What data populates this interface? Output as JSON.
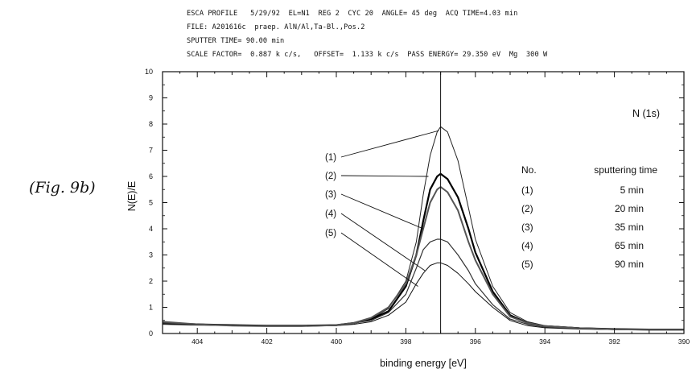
{
  "figure_label": "(Fig. 9b)",
  "header": {
    "line1": "ESCA PROFILE   5/29/92  EL=N1  REG 2  CYC 20  ANGLE= 45 deg  ACQ TIME=4.03 min",
    "line2": "FILE: A201616c  praep. AlN/Al,Ta-Bl.,Pos.2",
    "line3": "SPUTTER TIME= 90.00 min",
    "line4": "SCALE FACTOR=  0.887 k c/s,   OFFSET=  1.133 k c/s  PASS ENERGY= 29.350 eV  Mg  300 W"
  },
  "chart_data": {
    "type": "line",
    "title": "N (1s)",
    "xlabel": "binding energy [eV]",
    "ylabel": "N(E)/E",
    "xlim": [
      405,
      390
    ],
    "x_reversed": true,
    "ylim": [
      0,
      10
    ],
    "xticks": [
      404,
      402,
      400,
      398,
      396,
      394,
      392,
      390
    ],
    "yticks": [
      0,
      1,
      2,
      3,
      4,
      5,
      6,
      7,
      8,
      9,
      10
    ],
    "peak_line_x": 397.0,
    "legend": {
      "header_no": "No.",
      "header_time": "sputtering time",
      "placement": "right"
    },
    "series": [
      {
        "name": "(1)",
        "time": "5 min",
        "color": "#222222",
        "points": [
          [
            405,
            0.35
          ],
          [
            404,
            0.32
          ],
          [
            403,
            0.3
          ],
          [
            402,
            0.3
          ],
          [
            401,
            0.3
          ],
          [
            400,
            0.32
          ],
          [
            399.5,
            0.4
          ],
          [
            399,
            0.55
          ],
          [
            398.5,
            0.95
          ],
          [
            398,
            2.0
          ],
          [
            397.7,
            3.5
          ],
          [
            397.5,
            5.3
          ],
          [
            397.3,
            6.8
          ],
          [
            397.1,
            7.7
          ],
          [
            397.0,
            7.9
          ],
          [
            396.8,
            7.7
          ],
          [
            396.5,
            6.6
          ],
          [
            396.2,
            4.8
          ],
          [
            396,
            3.6
          ],
          [
            395.5,
            1.8
          ],
          [
            395,
            0.8
          ],
          [
            394.5,
            0.45
          ],
          [
            394,
            0.3
          ],
          [
            393,
            0.22
          ],
          [
            392,
            0.18
          ],
          [
            391,
            0.15
          ],
          [
            390,
            0.15
          ]
        ]
      },
      {
        "name": "(2)",
        "time": "20 min",
        "color": "#000000",
        "points": [
          [
            405,
            0.4
          ],
          [
            404,
            0.35
          ],
          [
            403,
            0.32
          ],
          [
            402,
            0.3
          ],
          [
            401,
            0.3
          ],
          [
            400,
            0.32
          ],
          [
            399.5,
            0.4
          ],
          [
            399,
            0.55
          ],
          [
            398.5,
            0.85
          ],
          [
            398,
            1.8
          ],
          [
            397.7,
            3.0
          ],
          [
            397.5,
            4.3
          ],
          [
            397.3,
            5.5
          ],
          [
            397.1,
            6.0
          ],
          [
            397.0,
            6.1
          ],
          [
            396.8,
            5.9
          ],
          [
            396.5,
            5.2
          ],
          [
            396.2,
            4.0
          ],
          [
            396,
            3.1
          ],
          [
            395.5,
            1.6
          ],
          [
            395,
            0.7
          ],
          [
            394.5,
            0.4
          ],
          [
            394,
            0.28
          ],
          [
            393,
            0.2
          ],
          [
            392,
            0.17
          ],
          [
            391,
            0.15
          ],
          [
            390,
            0.15
          ]
        ]
      },
      {
        "name": "(3)",
        "time": "35 min",
        "color": "#333333",
        "points": [
          [
            405,
            0.4
          ],
          [
            404,
            0.35
          ],
          [
            403,
            0.3
          ],
          [
            402,
            0.28
          ],
          [
            401,
            0.28
          ],
          [
            400,
            0.32
          ],
          [
            399.5,
            0.4
          ],
          [
            399,
            0.5
          ],
          [
            398.5,
            0.8
          ],
          [
            398,
            1.5
          ],
          [
            397.7,
            2.5
          ],
          [
            397.5,
            3.2
          ],
          [
            397.3,
            3.5
          ],
          [
            397.1,
            3.6
          ],
          [
            397.0,
            3.6
          ],
          [
            396.8,
            3.5
          ],
          [
            396.5,
            3.0
          ],
          [
            396.2,
            2.4
          ],
          [
            396,
            1.9
          ],
          [
            395.5,
            1.1
          ],
          [
            395,
            0.55
          ],
          [
            394.5,
            0.35
          ],
          [
            394,
            0.25
          ],
          [
            393,
            0.18
          ],
          [
            392,
            0.15
          ],
          [
            391,
            0.14
          ],
          [
            390,
            0.14
          ]
        ]
      },
      {
        "name": "(4)",
        "time": "65 min",
        "color": "#111111",
        "points": [
          [
            405,
            0.45
          ],
          [
            404,
            0.35
          ],
          [
            403,
            0.3
          ],
          [
            402,
            0.28
          ],
          [
            401,
            0.28
          ],
          [
            400,
            0.3
          ],
          [
            399.5,
            0.35
          ],
          [
            399,
            0.45
          ],
          [
            398.5,
            0.7
          ],
          [
            398,
            1.2
          ],
          [
            397.7,
            1.9
          ],
          [
            397.5,
            2.3
          ],
          [
            397.3,
            2.6
          ],
          [
            397.1,
            2.7
          ],
          [
            397.0,
            2.7
          ],
          [
            396.8,
            2.6
          ],
          [
            396.5,
            2.3
          ],
          [
            396.2,
            1.9
          ],
          [
            396,
            1.6
          ],
          [
            395.5,
            1.0
          ],
          [
            395,
            0.5
          ],
          [
            394.5,
            0.3
          ],
          [
            394,
            0.22
          ],
          [
            393,
            0.17
          ],
          [
            392,
            0.15
          ],
          [
            391,
            0.14
          ],
          [
            390,
            0.14
          ]
        ]
      },
      {
        "name": "(5)",
        "time": "90 min",
        "color": "#555555",
        "points": [
          [
            405,
            0.45
          ],
          [
            404,
            0.35
          ],
          [
            403,
            0.3
          ],
          [
            402,
            0.28
          ],
          [
            401,
            0.28
          ],
          [
            400,
            0.32
          ],
          [
            399.5,
            0.4
          ],
          [
            399,
            0.6
          ],
          [
            398.5,
            1.0
          ],
          [
            398,
            1.9
          ],
          [
            397.7,
            3.0
          ],
          [
            397.5,
            4.0
          ],
          [
            397.3,
            5.0
          ],
          [
            397.1,
            5.5
          ],
          [
            397.0,
            5.6
          ],
          [
            396.8,
            5.4
          ],
          [
            396.5,
            4.7
          ],
          [
            396.2,
            3.5
          ],
          [
            396,
            2.8
          ],
          [
            395.5,
            1.5
          ],
          [
            395,
            0.65
          ],
          [
            394.5,
            0.4
          ],
          [
            394,
            0.28
          ],
          [
            393,
            0.2
          ],
          [
            392,
            0.16
          ],
          [
            391,
            0.14
          ],
          [
            390,
            0.14
          ]
        ]
      }
    ]
  }
}
